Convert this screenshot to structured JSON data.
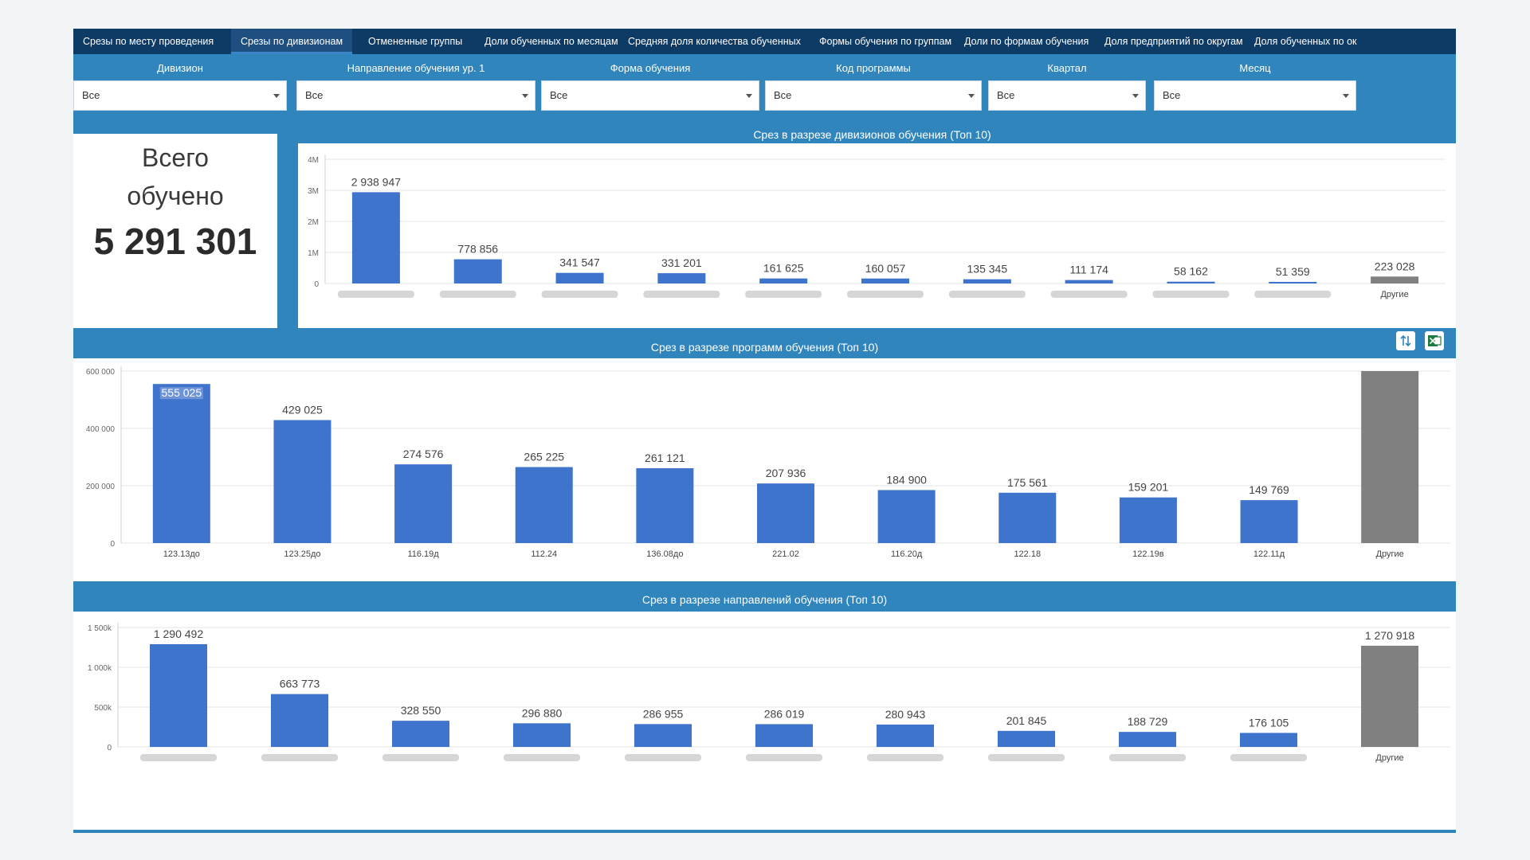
{
  "tabs": [
    {
      "label": "Срезы по месту проведения",
      "active": false
    },
    {
      "label": "Срезы по дивизионам",
      "active": true
    },
    {
      "label": "Отмененные группы",
      "active": false
    },
    {
      "label": "Доли обученных по месяцам",
      "active": false
    },
    {
      "label": "Средняя доля количества обученных",
      "active": false
    },
    {
      "label": "Формы обучения по группам",
      "active": false
    },
    {
      "label": "Доли по формам обучения",
      "active": false
    },
    {
      "label": "Доля предприятий по округам",
      "active": false
    },
    {
      "label": "Доля обученных по ок",
      "active": false
    }
  ],
  "filters": [
    {
      "label": "Дивизион",
      "value": "Все"
    },
    {
      "label": "Направление обучения ур. 1",
      "value": "Все"
    },
    {
      "label": "Форма обучения",
      "value": "Все"
    },
    {
      "label": "Код программы",
      "value": "Все"
    },
    {
      "label": "Квартал",
      "value": "Все"
    },
    {
      "label": "Месяц",
      "value": "Все"
    }
  ],
  "kpi": {
    "line1": "Всего",
    "line2": "обучено",
    "value": "5 291 301"
  },
  "buttons": {
    "sort_icon": "sort-icon",
    "excel_icon": "excel-icon"
  },
  "colors": {
    "bar": "#3f74cc",
    "other": "#808080",
    "band": "#3085bd",
    "tabs": "#0e3a66"
  },
  "chart_data": [
    {
      "type": "bar",
      "title": "Срез в разрезе дивизионов обучения (Топ 10)",
      "categories": [
        "",
        "",
        "",
        "",
        "",
        "",
        "",
        "",
        "",
        "",
        "Другие"
      ],
      "values": [
        2938947,
        778856,
        341547,
        331201,
        161625,
        160057,
        135345,
        111174,
        58162,
        51359,
        223028
      ],
      "value_labels": [
        "2 938 947",
        "778 856",
        "341 547",
        "331 201",
        "161 625",
        "160 057",
        "135 345",
        "111 174",
        "58 162",
        "51 359",
        "223 028"
      ],
      "ylim": [
        0,
        4000000
      ],
      "yticks": [
        0,
        1000000,
        2000000,
        3000000,
        4000000
      ],
      "ytick_labels": [
        "0",
        "1M",
        "2M",
        "3M",
        "4M"
      ],
      "other_index": 10
    },
    {
      "type": "bar",
      "title": "Срез в разрезе программ обучения (Топ 10)",
      "categories": [
        "123.13до",
        "123.25до",
        "116.19д",
        "112.24",
        "136.08до",
        "221.02",
        "116.20д",
        "122.18",
        "122.19в",
        "122.11д",
        "Другие"
      ],
      "values": [
        555025,
        429025,
        274576,
        265225,
        261121,
        207936,
        184900,
        175561,
        159201,
        149769,
        600000
      ],
      "value_labels": [
        "555 025",
        "429 025",
        "274 576",
        "265 225",
        "261 121",
        "207 936",
        "184 900",
        "175 561",
        "159 201",
        "149 769",
        ""
      ],
      "ylim": [
        0,
        600000
      ],
      "yticks": [
        0,
        200000,
        400000,
        600000
      ],
      "ytick_labels": [
        "0",
        "200 000",
        "400 000",
        "600 000"
      ],
      "other_index": 10
    },
    {
      "type": "bar",
      "title": "Срез в разрезе направлений обучения (Топ 10)",
      "categories": [
        "",
        "",
        "",
        "",
        "",
        "",
        "",
        "",
        "",
        "",
        "Другие"
      ],
      "values": [
        1290492,
        663773,
        328550,
        296880,
        286955,
        286019,
        280943,
        201845,
        188729,
        176105,
        1270918
      ],
      "value_labels": [
        "1 290 492",
        "663 773",
        "328 550",
        "296 880",
        "286 955",
        "286 019",
        "280 943",
        "201 845",
        "188 729",
        "176 105",
        "1 270 918"
      ],
      "ylim": [
        0,
        1500000
      ],
      "yticks": [
        0,
        500000,
        1000000,
        1500000
      ],
      "ytick_labels": [
        "0",
        "500k",
        "1 000k",
        "1 500k"
      ],
      "other_index": 10
    }
  ]
}
